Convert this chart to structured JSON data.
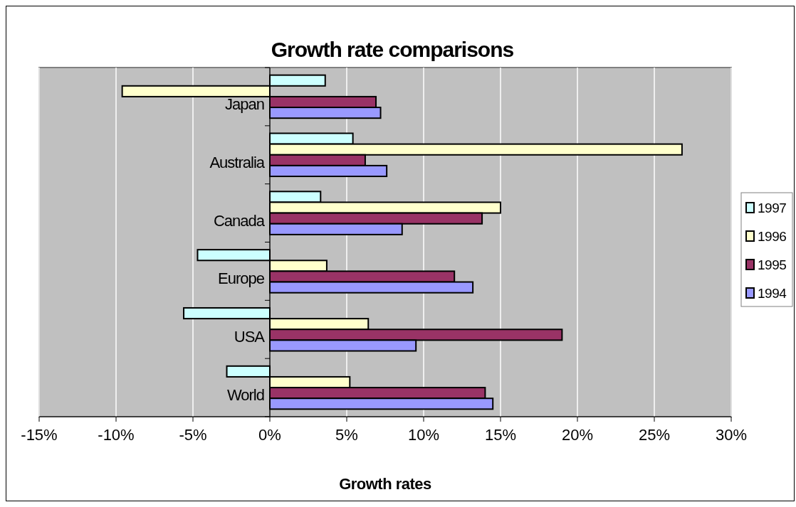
{
  "chart_data": {
    "type": "bar",
    "orientation": "horizontal",
    "title": "Growth rate comparisons",
    "xlabel": "Growth rates",
    "categories": [
      "Japan",
      "Australia",
      "Canada",
      "Europe",
      "USA",
      "World"
    ],
    "series": [
      {
        "name": "1997",
        "color": "#ccffff",
        "values": [
          3.6,
          5.4,
          3.3,
          -4.7,
          -5.6,
          -2.8
        ]
      },
      {
        "name": "1996",
        "color": "#ffffcc",
        "values": [
          -9.6,
          26.8,
          15.0,
          3.7,
          6.4,
          5.2
        ]
      },
      {
        "name": "1995",
        "color": "#993366",
        "values": [
          6.9,
          6.2,
          13.8,
          12.0,
          19.0,
          14.0
        ]
      },
      {
        "name": "1994",
        "color": "#9999ff",
        "values": [
          7.2,
          7.6,
          8.6,
          13.2,
          9.5,
          14.5
        ]
      }
    ],
    "xlim": [
      -15,
      30
    ],
    "xticks": [
      {
        "value": -15,
        "label": "-15%"
      },
      {
        "value": -10,
        "label": "-10%"
      },
      {
        "value": -5,
        "label": "-5%"
      },
      {
        "value": 0,
        "label": "0%"
      },
      {
        "value": 5,
        "label": "5%"
      },
      {
        "value": 10,
        "label": "10%"
      },
      {
        "value": 15,
        "label": "15%"
      },
      {
        "value": 20,
        "label": "20%"
      },
      {
        "value": 25,
        "label": "25%"
      },
      {
        "value": 30,
        "label": "30%"
      }
    ],
    "grid": "x",
    "legend": "right"
  }
}
